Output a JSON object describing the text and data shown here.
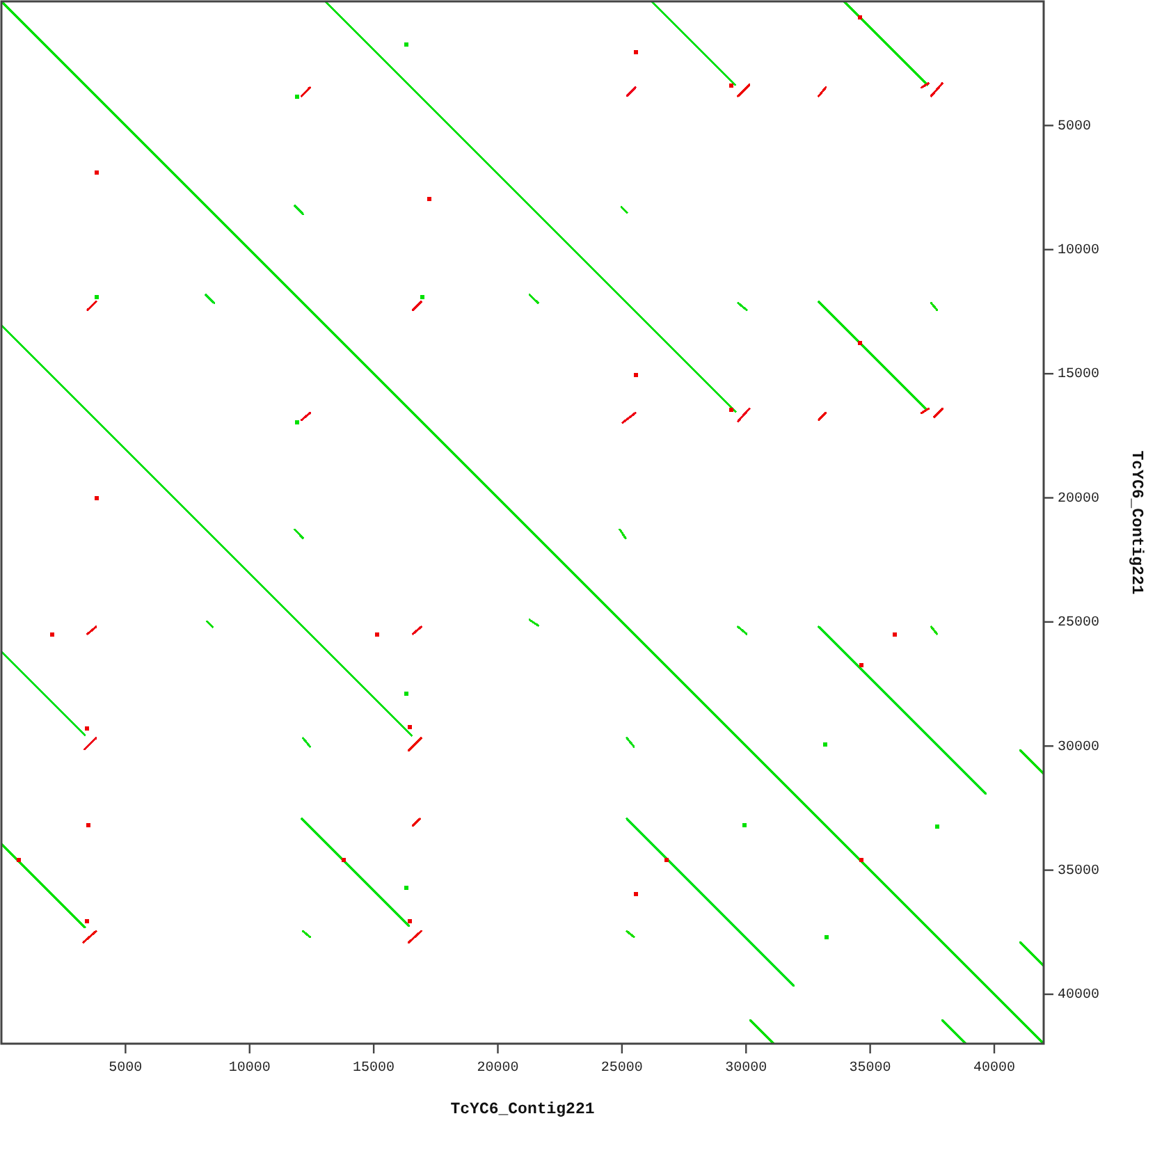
{
  "chart_data": {
    "type": "line",
    "xlabel": "TcYC6_Contig221",
    "ylabel": "TcYC6_Contig221",
    "xlim": [
      0,
      41990
    ],
    "ylim": [
      41990,
      0
    ],
    "xticks": [
      5000,
      10000,
      15000,
      20000,
      25000,
      30000,
      35000,
      40000
    ],
    "yticks": [
      5000,
      10000,
      15000,
      20000,
      25000,
      30000,
      35000,
      40000
    ],
    "series": [
      {
        "color": "#00e005",
        "x": [
          0,
          41990
        ],
        "values": [
          0,
          41990
        ]
      },
      {
        "color": "#00e00a",
        "x": [
          13050,
          29570
        ],
        "values": [
          0,
          16520
        ]
      },
      {
        "color": "#00e00f",
        "x": [
          0,
          16520
        ],
        "values": [
          13050,
          29570
        ]
      },
      {
        "color": "#00e014",
        "x": [
          26190,
          29550
        ],
        "values": [
          0,
          3360
        ]
      },
      {
        "color": "#00e019",
        "x": [
          0,
          3360
        ],
        "values": [
          26190,
          29550
        ]
      },
      {
        "color": "#05e000",
        "x": [
          33940,
          37300
        ],
        "values": [
          0,
          3360
        ]
      },
      {
        "color": "#05e005",
        "x": [
          0,
          3360
        ],
        "values": [
          33940,
          37300
        ]
      },
      {
        "color": "#05e00a",
        "x": [
          32930,
          37240
        ],
        "values": [
          12100,
          16410
        ]
      },
      {
        "color": "#05e00f",
        "x": [
          12100,
          16410
        ],
        "values": [
          32930,
          37240
        ]
      },
      {
        "color": "#05e014",
        "x": [
          32930,
          39650
        ],
        "values": [
          25200,
          31920
        ]
      },
      {
        "color": "#05e019",
        "x": [
          25200,
          31920
        ],
        "values": [
          32930,
          39650
        ]
      },
      {
        "color": "#0ae000",
        "x": [
          41050,
          41990
        ],
        "values": [
          30180,
          31120
        ]
      },
      {
        "color": "#0ae005",
        "x": [
          30180,
          31120
        ],
        "values": [
          41050,
          41990
        ]
      },
      {
        "color": "#0ae00a",
        "x": [
          41050,
          41990
        ],
        "values": [
          37910,
          38850
        ]
      },
      {
        "color": "#0ae00f",
        "x": [
          37910,
          38850
        ],
        "values": [
          41050,
          41990
        ]
      },
      {
        "color": "#0ae014",
        "x": [
          11820,
          12150
        ],
        "values": [
          8230,
          8570
        ]
      },
      {
        "color": "#0ae019",
        "x": [
          8230,
          8570
        ],
        "values": [
          11820,
          12150
        ]
      },
      {
        "color": "#0fe000",
        "x": [
          24980,
          25200
        ],
        "values": [
          8290,
          8510
        ]
      },
      {
        "color": "#0fe005",
        "x": [
          8290,
          8510
        ],
        "values": [
          24980,
          25200
        ]
      },
      {
        "color": "#0fe00a",
        "x": [
          21280,
          21620
        ],
        "values": [
          11820,
          12150
        ]
      },
      {
        "color": "#0fe00f",
        "x": [
          11820,
          12150
        ],
        "values": [
          21280,
          21620
        ]
      },
      {
        "color": "#0fe014",
        "x": [
          29680,
          30020
        ],
        "values": [
          12150,
          12430
        ]
      },
      {
        "color": "#0fe019",
        "x": [
          12150,
          12430
        ],
        "values": [
          29680,
          30020
        ]
      },
      {
        "color": "#14e000",
        "x": [
          37460,
          37690
        ],
        "values": [
          12150,
          12430
        ]
      },
      {
        "color": "#14e005",
        "x": [
          12150,
          12430
        ],
        "values": [
          37460,
          37690
        ]
      },
      {
        "color": "#14e00a",
        "x": [
          24920,
          25140
        ],
        "values": [
          21280,
          21620
        ]
      },
      {
        "color": "#14e00f",
        "x": [
          21280,
          21620
        ],
        "values": [
          24920,
          25140
        ]
      },
      {
        "color": "#14e014",
        "x": [
          29680,
          30020
        ],
        "values": [
          25200,
          25480
        ]
      },
      {
        "color": "#14e019",
        "x": [
          25200,
          25480
        ],
        "values": [
          29680,
          30020
        ]
      },
      {
        "color": "#19e000",
        "x": [
          37460,
          37690
        ],
        "values": [
          25200,
          25480
        ]
      },
      {
        "color": "#19e005",
        "x": [
          25200,
          25480
        ],
        "values": [
          37460,
          37690
        ]
      },
      {
        "color": "#ee0005",
        "x": [
          12100,
          12430
        ],
        "values": [
          3810,
          3470
        ]
      },
      {
        "color": "#ee000a",
        "x": [
          3470,
          3810
        ],
        "values": [
          12430,
          12100
        ]
      },
      {
        "color": "#ee000f",
        "x": [
          16580,
          16910
        ],
        "values": [
          12430,
          12100
        ]
      },
      {
        "color": "#ee0014",
        "x": [
          12100,
          12430
        ],
        "values": [
          16860,
          16580
        ]
      },
      {
        "color": "#ee0019",
        "x": [
          25200,
          25540
        ],
        "values": [
          3810,
          3470
        ]
      },
      {
        "color": "#ee0500",
        "x": [
          29680,
          30130
        ],
        "values": [
          3810,
          3360
        ]
      },
      {
        "color": "#ee0505",
        "x": [
          32930,
          33210
        ],
        "values": [
          3810,
          3470
        ]
      },
      {
        "color": "#ee050a",
        "x": [
          37070,
          37350
        ],
        "values": [
          3470,
          3300
        ]
      },
      {
        "color": "#ee050f",
        "x": [
          37460,
          37910
        ],
        "values": [
          3810,
          3300
        ]
      },
      {
        "color": "#ee0514",
        "x": [
          25030,
          25540
        ],
        "values": [
          16970,
          16580
        ]
      },
      {
        "color": "#ee0519",
        "x": [
          29680,
          30130
        ],
        "values": [
          16910,
          16410
        ]
      },
      {
        "color": "#ee0a00",
        "x": [
          32930,
          33210
        ],
        "values": [
          16860,
          16580
        ]
      },
      {
        "color": "#ee0a05",
        "x": [
          37070,
          37350
        ],
        "values": [
          16580,
          16410
        ]
      },
      {
        "color": "#ee0a0a",
        "x": [
          37580,
          37910
        ],
        "values": [
          16740,
          16410
        ]
      },
      {
        "color": "#ee0a0f",
        "x": [
          3470,
          3810
        ],
        "values": [
          25480,
          25200
        ]
      },
      {
        "color": "#ee0a14",
        "x": [
          16580,
          16910
        ],
        "values": [
          25480,
          25200
        ]
      },
      {
        "color": "#ee0a19",
        "x": [
          3360,
          3810
        ],
        "values": [
          30130,
          29680
        ]
      },
      {
        "color": "#ee0f00",
        "x": [
          16410,
          16910
        ],
        "values": [
          30180,
          29680
        ]
      },
      {
        "color": "#ee0f05",
        "x": [
          16580,
          16860
        ],
        "values": [
          33210,
          32930
        ]
      },
      {
        "color": "#ee0f0a",
        "x": [
          3300,
          3810
        ],
        "values": [
          37910,
          37460
        ]
      },
      {
        "color": "#ee0f0f",
        "x": [
          16410,
          16910
        ],
        "values": [
          37910,
          37460
        ]
      },
      {
        "type": "scatter",
        "marker": "square",
        "color": "#00e000",
        "x": [
          16300,
          16300,
          16300,
          33200,
          29950,
          37700,
          33250,
          11900,
          3850,
          16950,
          11900
        ],
        "values": [
          1750,
          27900,
          35700,
          29950,
          33200,
          33250,
          37700,
          3850,
          11900,
          11900,
          16950
        ]
      },
      {
        "type": "scatter",
        "marker": "square",
        "color": "#ee0000",
        "x": [
          3850,
          17250,
          3850,
          25550,
          25550,
          2050,
          15150,
          3500,
          3450,
          3450,
          16450,
          16450,
          29400,
          29400,
          36000,
          25550,
          34650,
          26800,
          34650,
          700,
          13800,
          34600,
          34600
        ],
        "values": [
          6900,
          7950,
          20000,
          2050,
          15050,
          25500,
          25500,
          33200,
          29300,
          37050,
          29250,
          37050,
          3400,
          16450,
          25500,
          35950,
          26750,
          34600,
          34600,
          34600,
          34600,
          650,
          13750
        ]
      }
    ]
  }
}
